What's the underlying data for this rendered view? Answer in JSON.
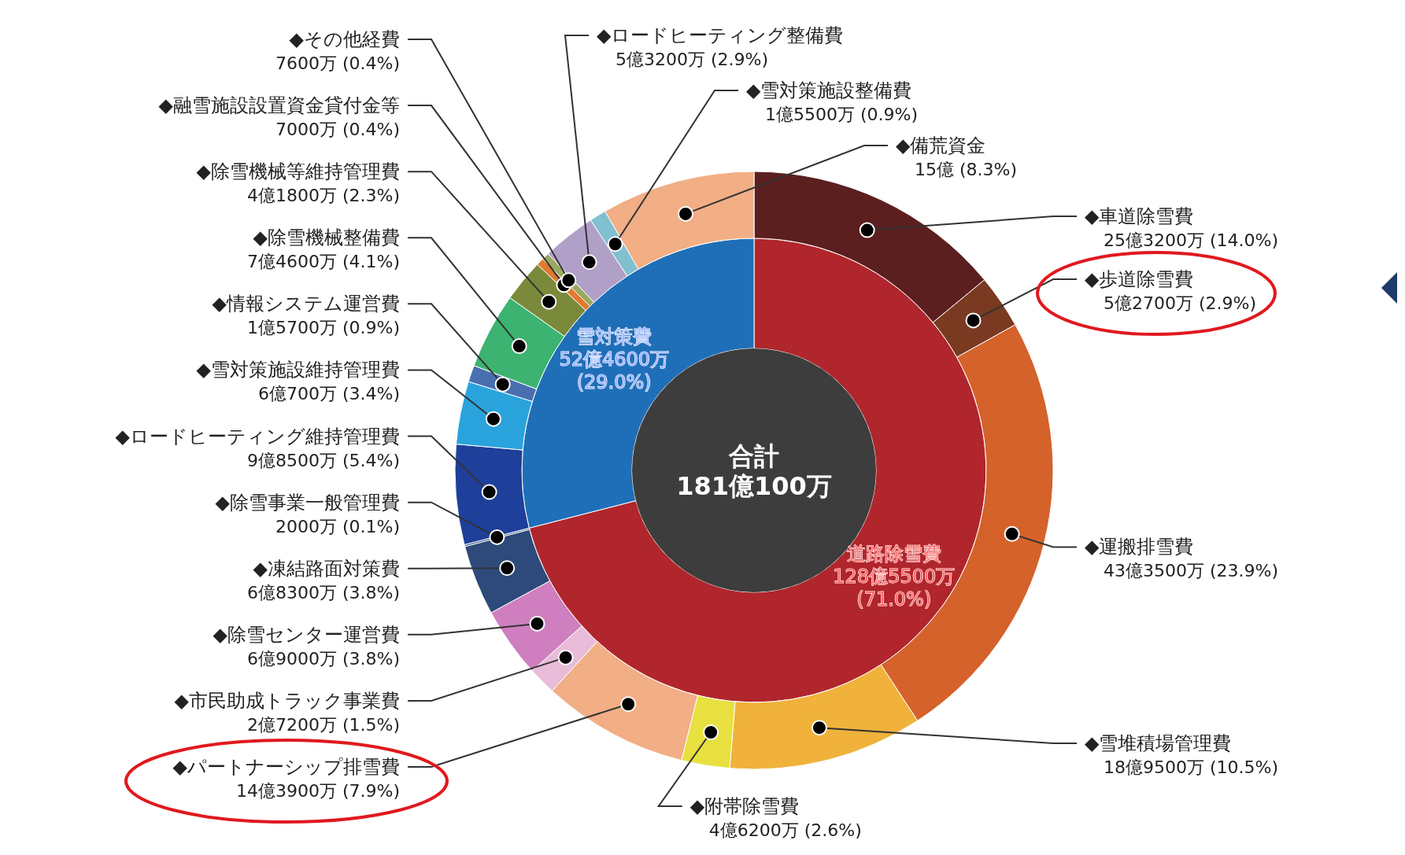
{
  "chart_data": [
    {
      "type": "donut",
      "categories": [
        "道路除雪費",
        "雪対策費"
      ],
      "values": [
        71.0,
        29.0
      ],
      "colors": [
        "#b0262c",
        "#1f6fb8"
      ],
      "value_labels": [
        "128億5500万 (71.0%)",
        "52億4600万 (29.0%)"
      ],
      "annotations": [
        "合計 181億100万"
      ]
    },
    {
      "type": "donut",
      "categories": [
        "◆車道除雪費",
        "◆歩道除雪費",
        "◆運搬排雪費",
        "◆雪堆積場管理費",
        "◆附帯除雪費",
        "◆パートナーシップ排雪費",
        "◆市民助成トラック事業費",
        "◆除雪センター運営費",
        "◆凍結路面対策費",
        "◆除雪事業一般管理費",
        "◆ロードヒーティング維持管理費",
        "◆雪対策施設維持管理費",
        "◆情報システム運営費",
        "◆除雪機械整備費",
        "◆除雪機械等維持管理費",
        "◆融雪施設設置資金貸付金等",
        "◆その他経費",
        "◆ロードヒーティング整備費",
        "◆雪対策施設整備費",
        "◆備荒資金"
      ],
      "values": [
        14.0,
        2.9,
        23.9,
        10.5,
        2.6,
        7.9,
        1.5,
        3.8,
        3.8,
        0.1,
        5.4,
        3.4,
        0.9,
        4.1,
        2.3,
        0.4,
        0.4,
        2.9,
        0.9,
        8.3
      ],
      "colors": [
        "#5c1f1f",
        "#7a3a22",
        "#d4622a",
        "#f0b23a",
        "#e8e040",
        "#f2ae85",
        "#e8bcd8",
        "#cf7fbf",
        "#2e4a7a",
        "#3a5a8a",
        "#1e3f9a",
        "#2aa3dc",
        "#4a6fb0",
        "#3cb371",
        "#7a8a3a",
        "#e07a30",
        "#9aaa60",
        "#b0a0c8",
        "#80c0d0",
        "#f2ae85"
      ],
      "value_labels": [
        "25億3200万 (14.0%)",
        "5億2700万 (2.9%)",
        "43億3500万 (23.9%)",
        "18億9500万 (10.5%)",
        "4億6200万 (2.6%)",
        "14億3900万 (7.9%)",
        "2億7200万 (1.5%)",
        "6億9000万 (3.8%)",
        "6億8300万 (3.8%)",
        "2000万 (0.1%)",
        "9億8500万 (5.4%)",
        "6億700万 (3.4%)",
        "1億5700万 (0.9%)",
        "7億4600万 (4.1%)",
        "4億1800万 (2.3%)",
        "7000万 (0.4%)",
        "7600万 (0.4%)",
        "5億3200万 (2.9%)",
        "1億5500万 (0.9%)",
        "15億 (8.3%)"
      ]
    }
  ]
}
